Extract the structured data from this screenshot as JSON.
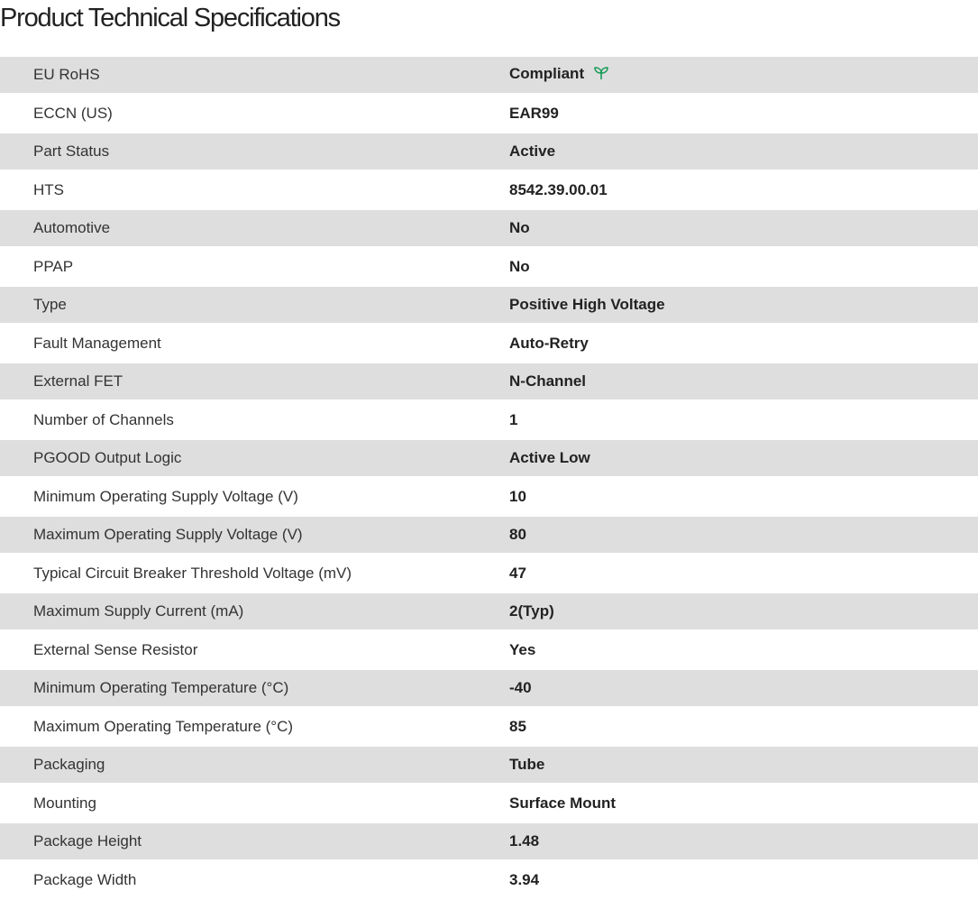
{
  "title": "Product Technical Specifications",
  "specs": [
    {
      "label": "EU RoHS",
      "value": "Compliant",
      "icon": "leaf-icon",
      "icon_color": "#1a9c5a"
    },
    {
      "label": "ECCN (US)",
      "value": "EAR99"
    },
    {
      "label": "Part Status",
      "value": "Active"
    },
    {
      "label": "HTS",
      "value": "8542.39.00.01"
    },
    {
      "label": "Automotive",
      "value": "No"
    },
    {
      "label": "PPAP",
      "value": "No"
    },
    {
      "label": "Type",
      "value": "Positive High Voltage"
    },
    {
      "label": "Fault Management",
      "value": "Auto-Retry"
    },
    {
      "label": "External FET",
      "value": "N-Channel"
    },
    {
      "label": "Number of Channels",
      "value": "1"
    },
    {
      "label": "PGOOD Output Logic",
      "value": "Active Low"
    },
    {
      "label": "Minimum Operating Supply Voltage (V)",
      "value": "10"
    },
    {
      "label": "Maximum Operating Supply Voltage (V)",
      "value": "80"
    },
    {
      "label": "Typical Circuit Breaker Threshold Voltage (mV)",
      "value": "47"
    },
    {
      "label": "Maximum Supply Current (mA)",
      "value": "2(Typ)"
    },
    {
      "label": "External Sense Resistor",
      "value": "Yes"
    },
    {
      "label": "Minimum Operating Temperature (°C)",
      "value": "-40"
    },
    {
      "label": "Maximum Operating Temperature (°C)",
      "value": "85"
    },
    {
      "label": "Packaging",
      "value": "Tube"
    },
    {
      "label": "Mounting",
      "value": "Surface Mount"
    },
    {
      "label": "Package Height",
      "value": "1.48"
    },
    {
      "label": "Package Width",
      "value": "3.94"
    }
  ]
}
